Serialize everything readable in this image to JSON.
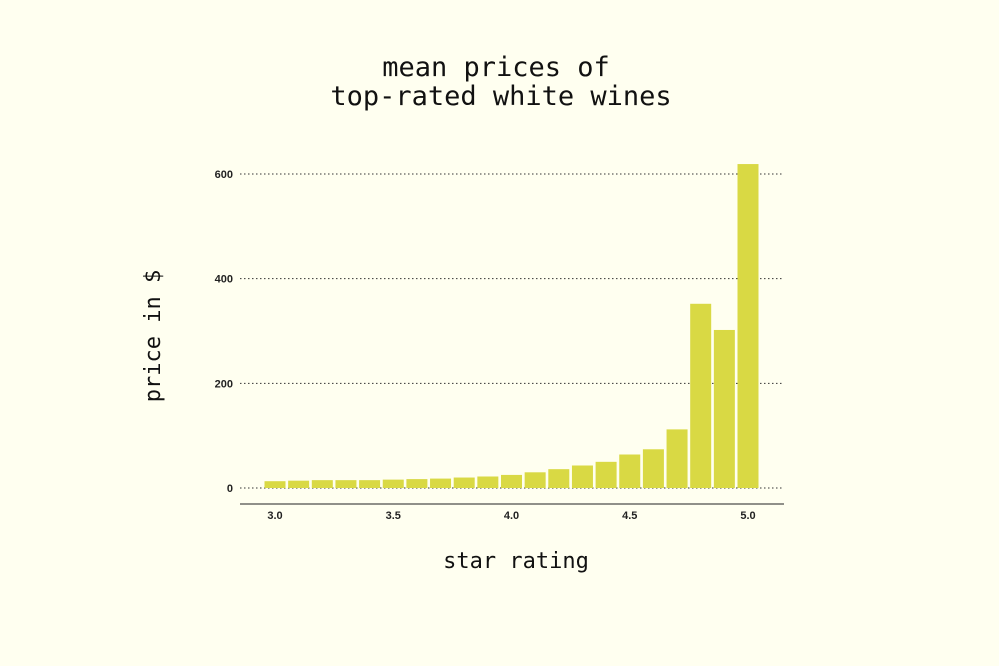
{
  "chart_data": {
    "type": "bar",
    "title": [
      "mean prices of",
      "top-rated white wines"
    ],
    "xlabel": "star rating",
    "ylabel": "price in $",
    "x": [
      3.0,
      3.1,
      3.2,
      3.3,
      3.4,
      3.5,
      3.6,
      3.7,
      3.8,
      3.9,
      4.0,
      4.1,
      4.2,
      4.3,
      4.4,
      4.5,
      4.6,
      4.7,
      4.8,
      4.9,
      5.0
    ],
    "values": [
      13,
      14,
      15,
      15,
      15,
      16,
      17,
      18,
      20,
      22,
      25,
      30,
      36,
      43,
      50,
      64,
      74,
      112,
      352,
      302,
      619
    ],
    "xticks": [
      3.0,
      3.5,
      4.0,
      4.5,
      5.0
    ],
    "xtick_labels": [
      "3.0",
      "3.5",
      "4.0",
      "4.5",
      "5.0"
    ],
    "yticks": [
      0,
      200,
      400,
      600
    ],
    "ytick_labels": [
      "0",
      "200",
      "400",
      "600"
    ],
    "xlim": [
      2.85,
      5.15
    ],
    "ylim": [
      0,
      650
    ],
    "grid": "horizontal-dotted",
    "bar_color": "#d9d944",
    "background": "#fffff0"
  }
}
